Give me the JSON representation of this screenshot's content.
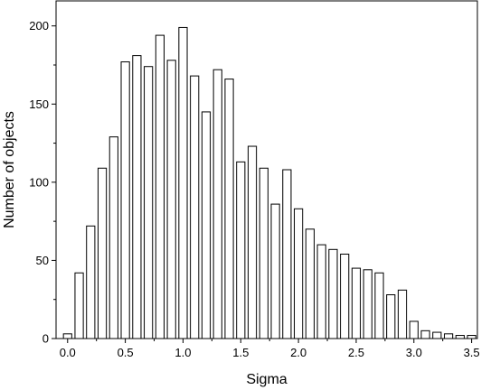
{
  "chart_data": {
    "type": "bar",
    "title": "",
    "xlabel": "Sigma",
    "ylabel": "Number of objects",
    "xlim": [
      -0.1,
      3.55
    ],
    "ylim": [
      0,
      216
    ],
    "bin_width": 0.1,
    "x": [
      0.0,
      0.1,
      0.2,
      0.3,
      0.4,
      0.5,
      0.6,
      0.7,
      0.8,
      0.9,
      1.0,
      1.1,
      1.2,
      1.3,
      1.4,
      1.5,
      1.6,
      1.7,
      1.8,
      1.9,
      2.0,
      2.1,
      2.2,
      2.3,
      2.4,
      2.5,
      2.6,
      2.7,
      2.8,
      2.9,
      3.0,
      3.1,
      3.2,
      3.3,
      3.4,
      3.5
    ],
    "values": [
      3,
      42,
      72,
      109,
      129,
      177,
      181,
      174,
      194,
      178,
      199,
      168,
      145,
      172,
      166,
      113,
      123,
      109,
      86,
      108,
      83,
      70,
      60,
      57,
      54,
      45,
      44,
      42,
      28,
      31,
      11,
      5,
      4,
      3,
      2,
      2
    ],
    "x_ticks": [
      "0.0",
      "0.5",
      "1.0",
      "1.5",
      "2.0",
      "2.5",
      "3.0",
      "3.5"
    ],
    "y_ticks": [
      "0",
      "50",
      "100",
      "150",
      "200"
    ],
    "grid": false,
    "legend": "none",
    "colors": {
      "bar_fill": "#ffffff",
      "bar_stroke": "#000000"
    }
  }
}
